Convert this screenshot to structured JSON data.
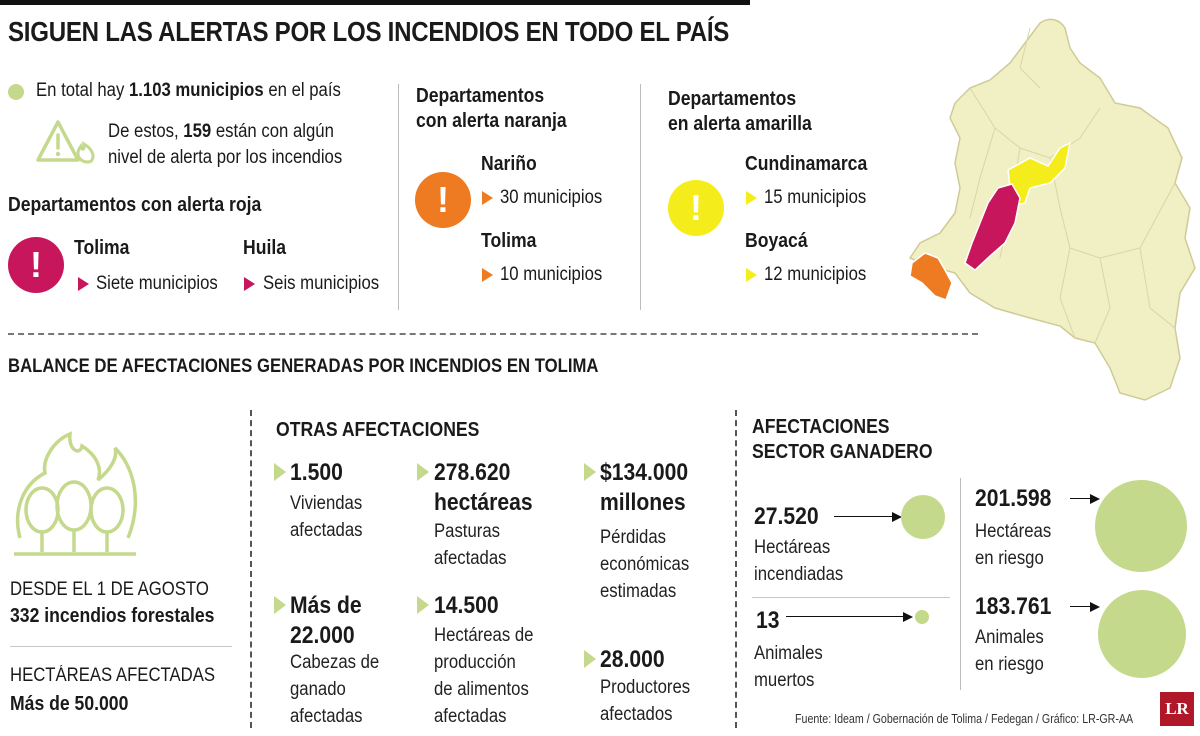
{
  "header": {
    "title": "SIGUEN LAS ALERTAS POR LOS INCENDIOS EN TODO EL PAÍS"
  },
  "summary": {
    "line1_pre": "En total hay ",
    "line1_bold": "1.103 municipios",
    "line1_post": " en el país",
    "line2_pre": "De estos, ",
    "line2_bold": "159",
    "line2_post": " están con algún",
    "line3": "nivel de alerta por los incendios"
  },
  "red_alert": {
    "heading": "Departamentos con alerta roja",
    "color": "#c8165c",
    "items": [
      {
        "name": "Tolima",
        "detail": "Siete municipios"
      },
      {
        "name": "Huila",
        "detail": "Seis municipios"
      }
    ]
  },
  "orange_alert": {
    "heading_1": "Departamentos",
    "heading_2": "con alerta naranja",
    "color": "#ee7a22",
    "items": [
      {
        "name": "Nariño",
        "detail": "30 municipios"
      },
      {
        "name": "Tolima",
        "detail": "10 municipios"
      }
    ]
  },
  "yellow_alert": {
    "heading_1": "Departamentos",
    "heading_2": "en alerta amarilla",
    "color": "#f5ec1c",
    "items": [
      {
        "name": "Cundinamarca",
        "detail": "15 municipios"
      },
      {
        "name": "Boyacá",
        "detail": "12 municipios"
      }
    ]
  },
  "alert_symbol": "!",
  "map": {
    "icon": "colombia-map",
    "base_color": "#f1efc4",
    "highlight_red": "#c8165c",
    "highlight_orange": "#ee7a22",
    "highlight_yellow": "#f5ec1c"
  },
  "balance": {
    "heading": "BALANCE DE AFECTACIONES GENERADAS POR INCENDIOS EN TOLIMA",
    "since_label": "DESDE EL 1 DE AGOSTO",
    "since_value": "332 incendios forestales",
    "hectares_label": "HECTÁREAS AFECTADAS",
    "hectares_value": "Más de 50.000",
    "icon": "forest-fire-icon"
  },
  "otras": {
    "heading": "OTRAS AFECTACIONES",
    "items": [
      {
        "value": "1.500",
        "desc": "Viviendas\nafectadas"
      },
      {
        "value": "Más de\n22.000",
        "desc": "Cabezas de\nganado\nafectadas"
      },
      {
        "value": "278.620\nhectáreas",
        "desc": "Pasturas\nafectadas"
      },
      {
        "value": "14.500",
        "desc": "Hectáreas de\nproducción\nde alimentos\nafectadas"
      },
      {
        "value": "$134.000\nmillones",
        "desc": "Pérdidas\neconómicas\nestimadas"
      },
      {
        "value": "28.000",
        "desc": "Productores\nafectados"
      }
    ]
  },
  "ganadero": {
    "heading_1": "AFECTACIONES",
    "heading_2": "SECTOR GANADERO",
    "items": [
      {
        "value": "27.520",
        "desc": "Hectáreas\nincendiadas"
      },
      {
        "value": "13",
        "desc": "Animales\nmuertos"
      },
      {
        "value": "201.598",
        "desc": "Hectáreas\nen riesgo"
      },
      {
        "value": "183.761",
        "desc": "Animales\nen riesgo"
      }
    ],
    "bubble_color": "#c4d98b"
  },
  "footer": {
    "source": "Fuente: Ideam / Gobernación de Tolima / Fedegan / Gráfico: LR-GR-AA",
    "logo": "LR"
  }
}
